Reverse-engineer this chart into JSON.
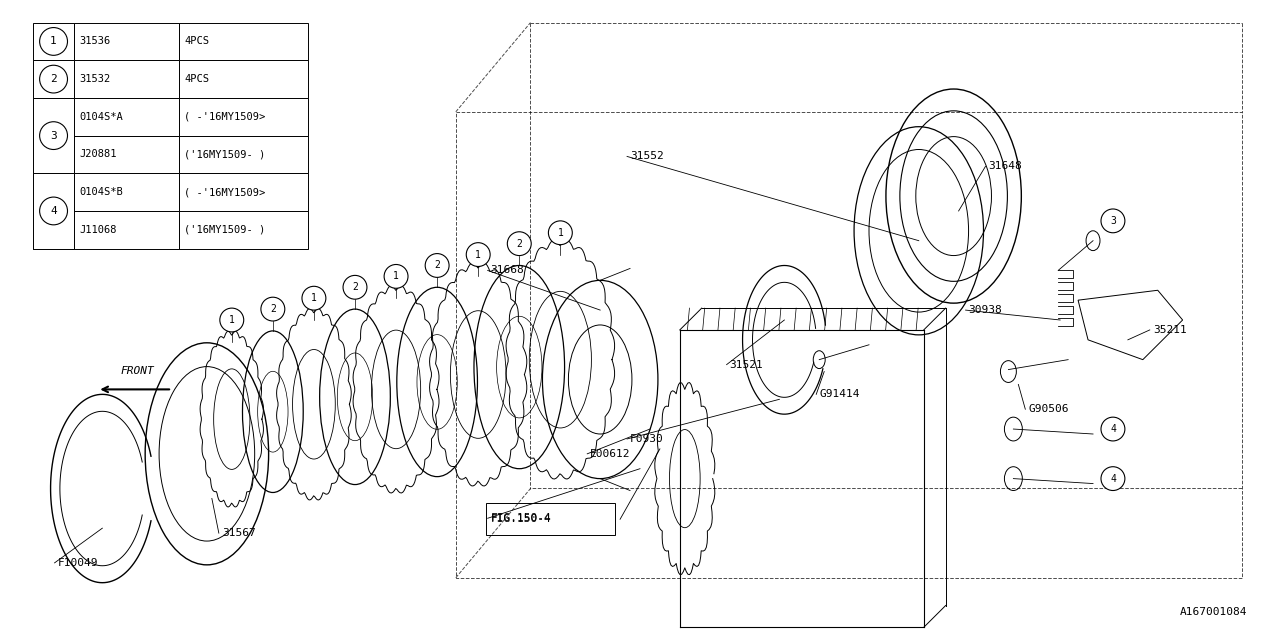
{
  "bg_color": "#ffffff",
  "line_color": "#000000",
  "fig_width": 12.8,
  "fig_height": 6.4,
  "diagram_id": "A167001084",
  "table_rows": [
    [
      "1",
      "31536",
      "4PCS"
    ],
    [
      "2",
      "31532",
      "4PCS"
    ],
    [
      "3",
      "0104S*A",
      "( -'16MY1509>"
    ],
    [
      "",
      "J20881",
      "('16MY1509- )"
    ],
    [
      "4",
      "0104S*B",
      "( -'16MY1509>"
    ],
    [
      "",
      "J11068",
      "('16MY1509- )"
    ]
  ]
}
